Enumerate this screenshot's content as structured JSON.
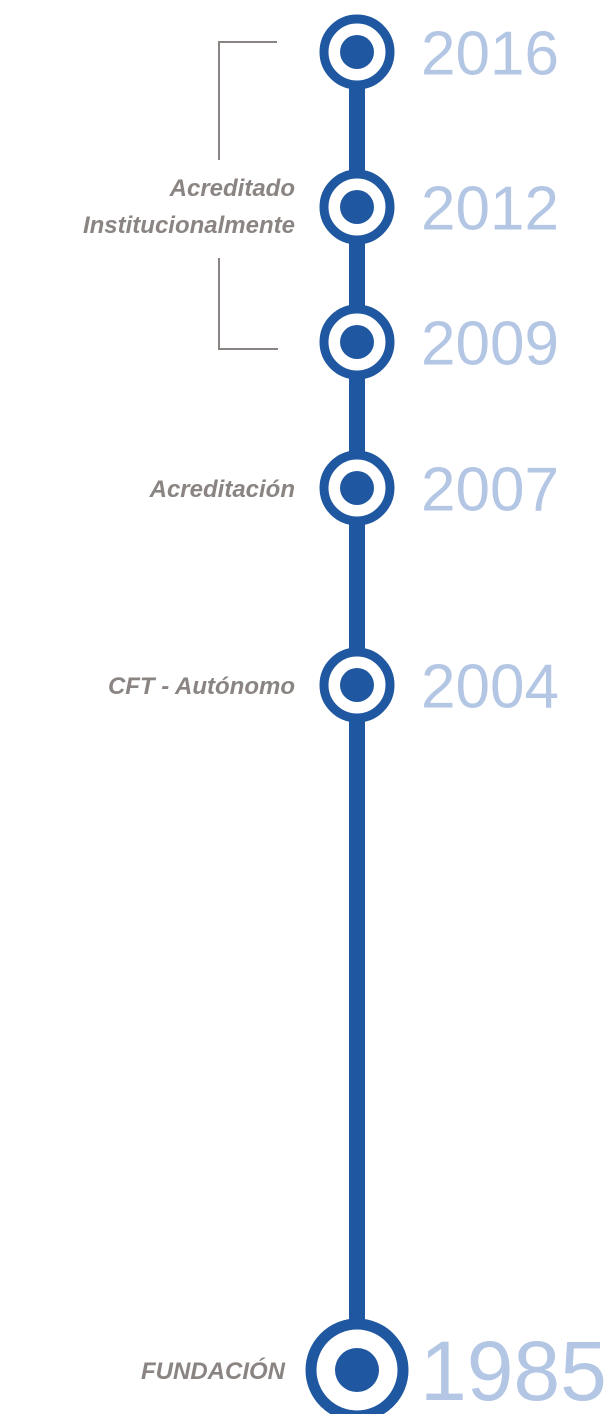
{
  "milestones": [
    {
      "year": "2016"
    },
    {
      "year": "2012"
    },
    {
      "year": "2009"
    },
    {
      "year": "2007",
      "label": "Acreditación"
    },
    {
      "year": "2004",
      "label": "CFT - Autónomo"
    },
    {
      "year": "1985",
      "label": "FUNDACIÓN"
    }
  ],
  "bracket": {
    "lines": [
      "Acreditado",
      "Institucionalmente"
    ]
  }
}
